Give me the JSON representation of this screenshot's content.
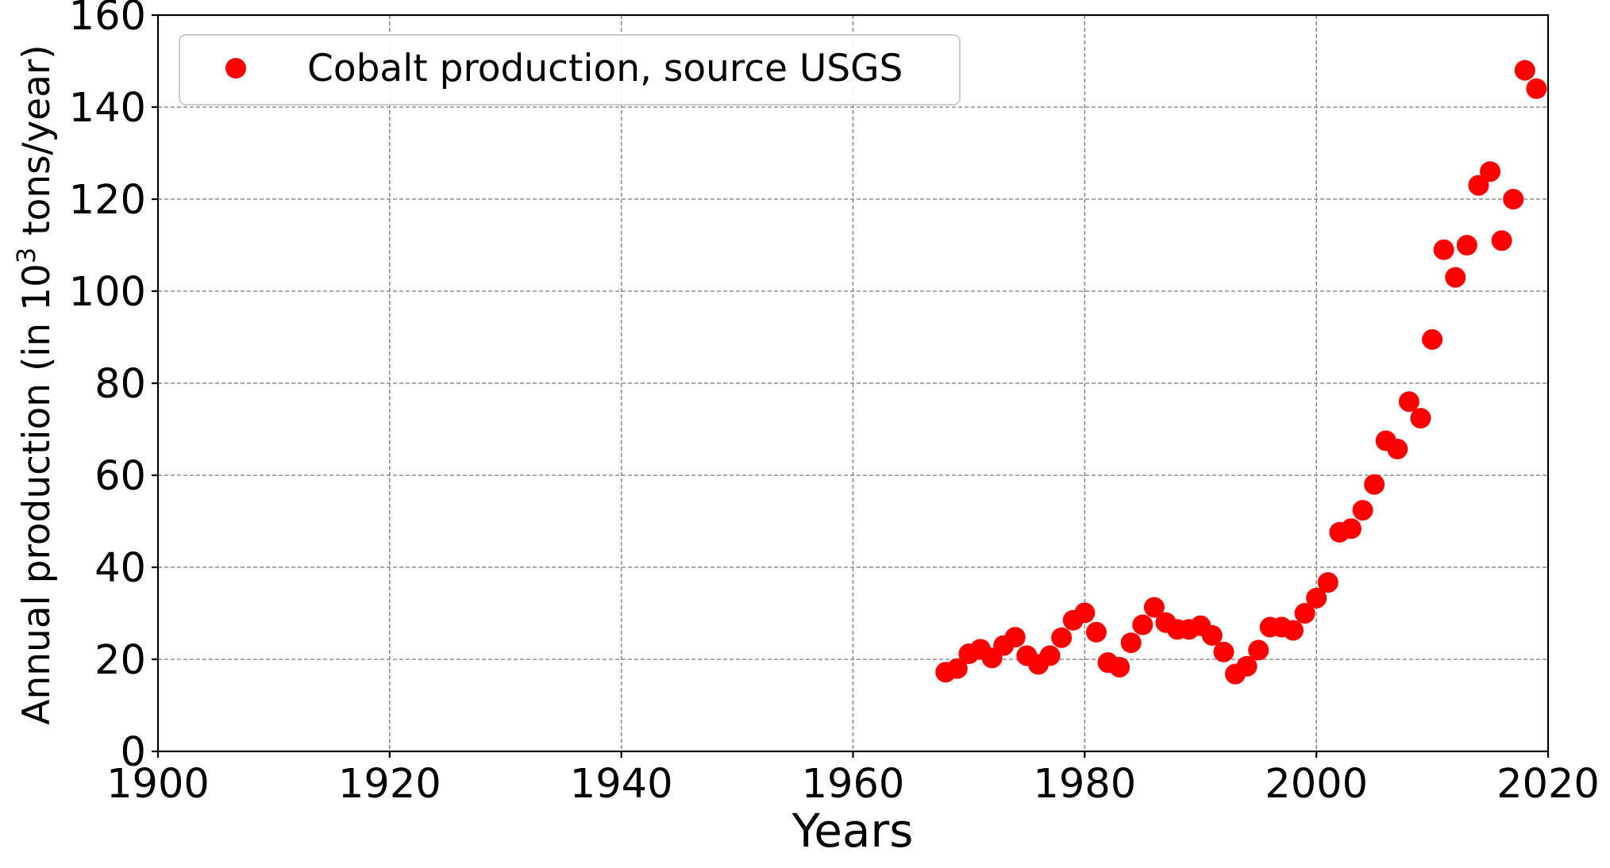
{
  "chart_data": {
    "type": "scatter",
    "title": "",
    "xlabel": "Years",
    "ylabel": "Annual production (in 10",
    "ylabel_superscript": "3",
    "ylabel_suffix": " tons/year)",
    "xlim": [
      1900,
      2020
    ],
    "ylim": [
      0,
      160
    ],
    "x_ticks": [
      1900,
      1920,
      1940,
      1960,
      1980,
      2000,
      2020
    ],
    "y_ticks": [
      0,
      20,
      40,
      60,
      80,
      100,
      120,
      140,
      160
    ],
    "x_tick_labels": [
      "1900",
      "1920",
      "1940",
      "1960",
      "1980",
      "2000",
      "2020"
    ],
    "y_tick_labels": [
      "0",
      "20",
      "40",
      "60",
      "80",
      "100",
      "120",
      "140",
      "160"
    ],
    "grid": true,
    "legend_position": "top-left",
    "series": [
      {
        "name": "Cobalt production, source USGS",
        "color": "#ff0000",
        "marker": "circle",
        "x": [
          1968,
          1969,
          1970,
          1971,
          1972,
          1973,
          1974,
          1975,
          1976,
          1977,
          1978,
          1979,
          1980,
          1981,
          1982,
          1983,
          1984,
          1985,
          1986,
          1987,
          1988,
          1989,
          1990,
          1991,
          1992,
          1993,
          1994,
          1995,
          1996,
          1997,
          1998,
          1999,
          2000,
          2001,
          2002,
          2003,
          2004,
          2005,
          2006,
          2007,
          2008,
          2009,
          2010,
          2011,
          2012,
          2013,
          2014,
          2015,
          2016,
          2017,
          2018,
          2019
        ],
        "y": [
          17.2,
          18.0,
          21.2,
          22.2,
          20.3,
          23.0,
          24.8,
          20.8,
          18.9,
          20.8,
          24.7,
          28.5,
          30.1,
          25.9,
          19.3,
          18.3,
          23.6,
          27.5,
          31.3,
          28.0,
          26.5,
          26.5,
          27.3,
          25.2,
          21.6,
          16.8,
          18.5,
          22.0,
          27.0,
          27.0,
          26.3,
          30.0,
          33.3,
          36.7,
          47.6,
          48.4,
          52.4,
          58.0,
          67.5,
          65.7,
          76.0,
          72.4,
          89.5,
          109.0,
          103.0,
          110.0,
          123.0,
          126.0,
          111.0,
          120.0,
          148.0,
          144.0
        ]
      }
    ]
  }
}
